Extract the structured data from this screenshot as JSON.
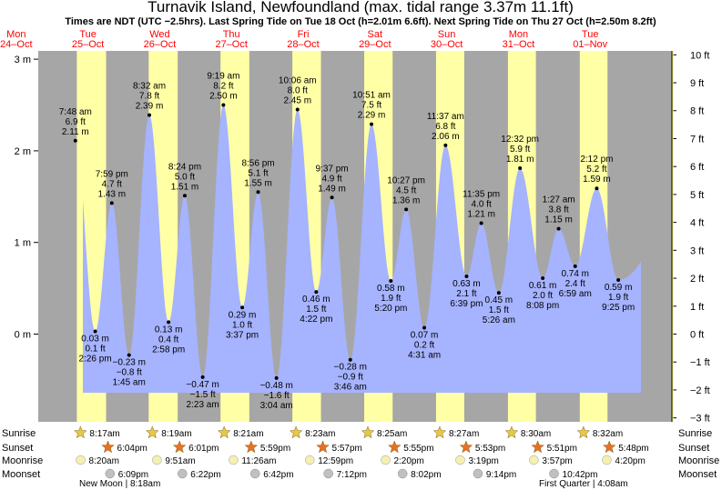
{
  "title": "Turnavik Island, Newfoundland (max. tidal range 3.37m 11.1ft)",
  "subtitle": "Times are NDT (UTC −2.5hrs). Last Spring Tide on Tue 18 Oct (h=2.01m 6.6ft). Next Spring Tide on Thu 27 Oct (h=2.50m 8.2ft)",
  "colors": {
    "night": "#a6a6a6",
    "day": "#ffffa6",
    "water": "#a6b3ff",
    "day_text": "#ff0000",
    "sun_icon": "#e6c84a",
    "sunset_icon": "#e8702a",
    "moon_icon": "#f5f0b0",
    "moonset_icon": "#c0c0c0"
  },
  "chart_data": {
    "type": "area",
    "ylabel_left_unit": "m",
    "ylabel_right_unit": "ft",
    "ylim_m": [
      -0.9,
      3.05
    ],
    "ylim_ft": [
      -3,
      10
    ],
    "left_ticks": [
      "3 m",
      "2 m",
      "1 m",
      "0 m"
    ],
    "left_tick_values": [
      3,
      2,
      1,
      0
    ],
    "right_ticks": [
      "10 ft",
      "9 ft",
      "8 ft",
      "7 ft",
      "6 ft",
      "5 ft",
      "4 ft",
      "3 ft",
      "2 ft",
      "1 ft",
      "0 ft",
      "−1 ft",
      "−2 ft",
      "−3 ft"
    ],
    "right_tick_values": [
      10,
      9,
      8,
      7,
      6,
      5,
      4,
      3,
      2,
      1,
      0,
      -1,
      -2,
      -3
    ],
    "day_headers": [
      {
        "dow": "Mon",
        "date": "24–Oct"
      },
      {
        "dow": "Tue",
        "date": "25–Oct"
      },
      {
        "dow": "Wed",
        "date": "26–Oct"
      },
      {
        "dow": "Thu",
        "date": "27–Oct"
      },
      {
        "dow": "Fri",
        "date": "28–Oct"
      },
      {
        "dow": "Sat",
        "date": "29–Oct"
      },
      {
        "dow": "Sun",
        "date": "30–Oct"
      },
      {
        "dow": "Mon",
        "date": "31–Oct"
      },
      {
        "dow": "Tue",
        "date": "01–Nov"
      }
    ],
    "daylight": [
      {
        "day": 1,
        "sunrise": "8:17am",
        "sunset": "6:04pm"
      },
      {
        "day": 2,
        "sunrise": "8:19am",
        "sunset": "6:01pm"
      },
      {
        "day": 3,
        "sunrise": "8:21am",
        "sunset": "5:59pm"
      },
      {
        "day": 4,
        "sunrise": "8:23am",
        "sunset": "5:57pm"
      },
      {
        "day": 5,
        "sunrise": "8:25am",
        "sunset": "5:55pm"
      },
      {
        "day": 6,
        "sunrise": "8:27am",
        "sunset": "5:53pm"
      },
      {
        "day": 7,
        "sunrise": "8:30am",
        "sunset": "5:51pm"
      },
      {
        "day": 8,
        "sunrise": "8:32am",
        "sunset": "5:48pm"
      }
    ],
    "tides": [
      {
        "day": 1,
        "time": "7:48 am",
        "m": 2.11,
        "ft": "6.9 ft",
        "h": "2.11 m",
        "hi": true
      },
      {
        "day": 1,
        "time": "2:26 pm",
        "m": 0.03,
        "ft": "0.1 ft",
        "h": "0.03 m",
        "hi": false
      },
      {
        "day": 1,
        "time": "7:59 pm",
        "m": 1.43,
        "ft": "4.7 ft",
        "h": "1.43 m",
        "hi": true
      },
      {
        "day": 2,
        "time": "1:45 am",
        "m": -0.23,
        "ft": "−0.8 ft",
        "h": "−0.23 m",
        "hi": false
      },
      {
        "day": 2,
        "time": "8:32 am",
        "m": 2.39,
        "ft": "7.8 ft",
        "h": "2.39 m",
        "hi": true
      },
      {
        "day": 2,
        "time": "2:58 pm",
        "m": 0.13,
        "ft": "0.4 ft",
        "h": "0.13 m",
        "hi": false
      },
      {
        "day": 2,
        "time": "8:24 pm",
        "m": 1.51,
        "ft": "5.0 ft",
        "h": "1.51 m",
        "hi": true
      },
      {
        "day": 3,
        "time": "2:23 am",
        "m": -0.47,
        "ft": "−1.5 ft",
        "h": "−0.47 m",
        "hi": false
      },
      {
        "day": 3,
        "time": "9:19 am",
        "m": 2.5,
        "ft": "8.2 ft",
        "h": "2.50 m",
        "hi": true
      },
      {
        "day": 3,
        "time": "3:37 pm",
        "m": 0.29,
        "ft": "1.0 ft",
        "h": "0.29 m",
        "hi": false
      },
      {
        "day": 3,
        "time": "8:56 pm",
        "m": 1.55,
        "ft": "5.1 ft",
        "h": "1.55 m",
        "hi": true
      },
      {
        "day": 4,
        "time": "3:04 am",
        "m": -0.48,
        "ft": "−1.6 ft",
        "h": "−0.48 m",
        "hi": false
      },
      {
        "day": 4,
        "time": "10:06 am",
        "m": 2.45,
        "ft": "8.0 ft",
        "h": "2.45 m",
        "hi": true
      },
      {
        "day": 4,
        "time": "4:22 pm",
        "m": 0.46,
        "ft": "1.5 ft",
        "h": "0.46 m",
        "hi": false
      },
      {
        "day": 4,
        "time": "9:37 pm",
        "m": 1.49,
        "ft": "4.9 ft",
        "h": "1.49 m",
        "hi": true
      },
      {
        "day": 5,
        "time": "3:46 am",
        "m": -0.28,
        "ft": "−0.9 ft",
        "h": "−0.28 m",
        "hi": false
      },
      {
        "day": 5,
        "time": "10:51 am",
        "m": 2.29,
        "ft": "7.5 ft",
        "h": "2.29 m",
        "hi": true
      },
      {
        "day": 5,
        "time": "5:20 pm",
        "m": 0.58,
        "ft": "1.9 ft",
        "h": "0.58 m",
        "hi": false
      },
      {
        "day": 5,
        "time": "10:27 pm",
        "m": 1.36,
        "ft": "4.5 ft",
        "h": "1.36 m",
        "hi": true
      },
      {
        "day": 6,
        "time": "4:31 am",
        "m": 0.07,
        "ft": "0.2 ft",
        "h": "0.07 m",
        "hi": false
      },
      {
        "day": 6,
        "time": "11:37 am",
        "m": 2.06,
        "ft": "6.8 ft",
        "h": "2.06 m",
        "hi": true
      },
      {
        "day": 6,
        "time": "6:39 pm",
        "m": 0.63,
        "ft": "2.1 ft",
        "h": "0.63 m",
        "hi": false
      },
      {
        "day": 6,
        "time": "11:35 pm",
        "m": 1.21,
        "ft": "4.0 ft",
        "h": "1.21 m",
        "hi": true
      },
      {
        "day": 7,
        "time": "5:26 am",
        "m": 0.45,
        "ft": "1.5 ft",
        "h": "0.45 m",
        "hi": false
      },
      {
        "day": 7,
        "time": "12:32 pm",
        "m": 1.81,
        "ft": "5.9 ft",
        "h": "1.81 m",
        "hi": true
      },
      {
        "day": 7,
        "time": "8:08 pm",
        "m": 0.61,
        "ft": "2.0 ft",
        "h": "0.61 m",
        "hi": false
      },
      {
        "day": 8,
        "time": "1:27 am",
        "m": 1.15,
        "ft": "3.8 ft",
        "h": "1.15 m",
        "hi": true
      },
      {
        "day": 8,
        "time": "6:59 am",
        "m": 0.74,
        "ft": "2.4 ft",
        "h": "0.74 m",
        "hi": false
      },
      {
        "day": 8,
        "time": "2:12 pm",
        "m": 1.59,
        "ft": "5.2 ft",
        "h": "1.59 m",
        "hi": true
      },
      {
        "day": 8,
        "time": "9:25 pm",
        "m": 0.59,
        "ft": "1.9 ft",
        "h": "0.59 m",
        "hi": false
      }
    ]
  },
  "astro_rows": {
    "labels_left": [
      "Sunrise",
      "Sunset",
      "Moonrise",
      "Moonset"
    ],
    "labels_right": [
      "Sunrise",
      "Sunset",
      "Moonrise",
      "Moonset"
    ],
    "moonrise": [
      {
        "day": 1,
        "time": "8:20am"
      },
      {
        "day": 2,
        "time": "9:51am"
      },
      {
        "day": 3,
        "time": "11:26am"
      },
      {
        "day": 4,
        "time": "12:59pm"
      },
      {
        "day": 5,
        "time": "2:20pm"
      },
      {
        "day": 6,
        "time": "3:19pm"
      },
      {
        "day": 7,
        "time": "3:57pm"
      },
      {
        "day": 8,
        "time": "4:20pm"
      }
    ],
    "moonset": [
      {
        "day": 1,
        "time": "6:09pm"
      },
      {
        "day": 2,
        "time": "6:22pm"
      },
      {
        "day": 3,
        "time": "6:42pm"
      },
      {
        "day": 4,
        "time": "7:12pm"
      },
      {
        "day": 5,
        "time": "8:02pm"
      },
      {
        "day": 6,
        "time": "9:14pm"
      },
      {
        "day": 7,
        "time": "10:42pm"
      }
    ],
    "moon_phases": [
      {
        "label": "New Moon | 8:18am",
        "day": 1
      },
      {
        "label": "First Quarter | 4:08am",
        "day": 8
      }
    ]
  }
}
